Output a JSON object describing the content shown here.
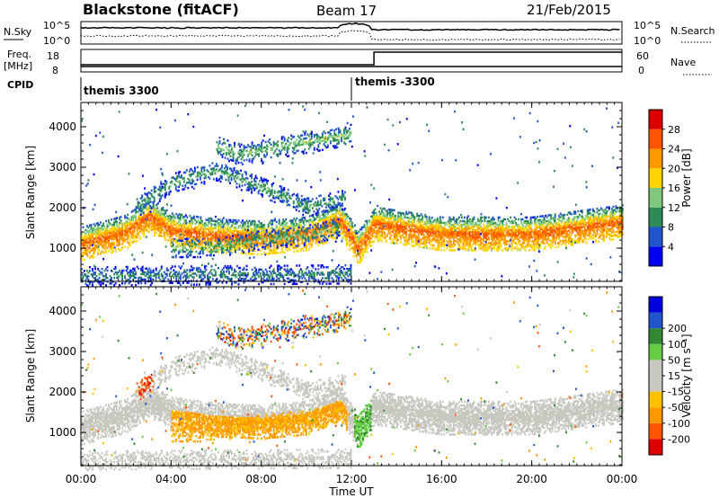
{
  "header": {
    "title": "Blackstone (fitACF)",
    "beam": "Beam 17",
    "date": "21/Feb/2015"
  },
  "noise_panel": {
    "left_label": "N.Sky",
    "left_ticks": [
      "10^5",
      "10^0"
    ],
    "right_ticks": [
      "10^5",
      "10^0"
    ],
    "right_label": "N.Search"
  },
  "freq_panel": {
    "left_label_line1": "Freq.",
    "left_label_line2": "[MHz]",
    "left_ticks": [
      "18",
      "8"
    ],
    "right_ticks": [
      "60",
      "0"
    ],
    "right_label": "Nave"
  },
  "cpid": {
    "label": "CPID",
    "segments": [
      {
        "name": "themis 3300",
        "start_hour": 0
      },
      {
        "name": "themis -3300",
        "start_hour": 12
      }
    ]
  },
  "x_axis": {
    "label": "Time UT",
    "ticks": [
      "00:00",
      "04:00",
      "08:00",
      "12:00",
      "16:00",
      "20:00",
      "00:00"
    ],
    "tick_hours": [
      0,
      4,
      8,
      12,
      16,
      20,
      24
    ]
  },
  "colors": {
    "power_scale": [
      "#0000ee",
      "#2255cc",
      "#2e8b57",
      "#7fc97f",
      "#ffd400",
      "#ff9900",
      "#ff5500",
      "#dd0000"
    ],
    "velocity_scale": [
      "#dd0000",
      "#ff5500",
      "#ff9900",
      "#ffc000",
      "#c8c8c0",
      "#c8c8c0",
      "#66cc44",
      "#338833",
      "#2255cc",
      "#0000dd"
    ]
  },
  "chart_data": [
    {
      "type": "heatmap",
      "title": "Power",
      "xlabel": "Time UT",
      "ylabel": "Slant Range [km]",
      "xlim": [
        0,
        24
      ],
      "ylim": [
        180,
        4600
      ],
      "y_ticks": [
        "1000",
        "2000",
        "3000",
        "4000"
      ],
      "y_tick_values": [
        1000,
        2000,
        3000,
        4000
      ],
      "colorbar": {
        "label": "Power [dB]",
        "ticks": [
          "4",
          "8",
          "12",
          "16",
          "20",
          "24",
          "28"
        ],
        "tick_values": [
          4,
          8,
          12,
          16,
          20,
          24,
          28
        ],
        "range": [
          0,
          32
        ]
      },
      "features": [
        {
          "name": "main band",
          "t": [
            0,
            2,
            3,
            4,
            6,
            8,
            10,
            11.5,
            12.3,
            13,
            16,
            20,
            24
          ],
          "range_km": [
            1100,
            1400,
            1800,
            1450,
            1300,
            1250,
            1350,
            1700,
            1000,
            1600,
            1350,
            1350,
            1650
          ],
          "peak_db": 25
        },
        {
          "name": "upper arc",
          "t": [
            2.5,
            4,
            6,
            8,
            10,
            11.7
          ],
          "range_km": [
            2000,
            2600,
            2900,
            2500,
            2000,
            2200
          ],
          "peak_db": 12
        },
        {
          "name": "mid band",
          "t": [
            4,
            6,
            8,
            10,
            11.5
          ],
          "range_km": [
            1000,
            1000,
            1200,
            1300,
            1500
          ],
          "peak_db": 14
        },
        {
          "name": "far echoes",
          "t": [
            6,
            7,
            12
          ],
          "range_km": [
            3500,
            3300,
            3800
          ],
          "peak_db": 14
        },
        {
          "name": "ground scatter",
          "t": [
            0,
            12
          ],
          "range_km": [
            300,
            350
          ],
          "peak_db": 10
        }
      ]
    },
    {
      "type": "heatmap",
      "title": "Velocity",
      "xlabel": "Time UT",
      "ylabel": "Slant Range [km]",
      "xlim": [
        0,
        24
      ],
      "ylim": [
        180,
        4600
      ],
      "y_ticks": [
        "1000",
        "2000",
        "3000",
        "4000"
      ],
      "y_tick_values": [
        1000,
        2000,
        3000,
        4000
      ],
      "colorbar": {
        "label": "Velocity [m s⁻¹]",
        "ticks": [
          "-200",
          "-100",
          "-50",
          "-15",
          "15",
          "50",
          "100",
          "200"
        ],
        "tick_values": [
          -200,
          -100,
          -50,
          -15,
          15,
          50,
          100,
          200
        ],
        "range": [
          -250,
          250
        ]
      },
      "features": [
        {
          "name": "ground scatter band",
          "t": [
            0,
            3,
            5,
            8,
            12,
            13,
            24
          ],
          "range_km": [
            1350,
            1400,
            2400,
            1700,
            1500,
            1650,
            1650
          ],
          "velocity": 0
        },
        {
          "name": "westward flow",
          "t": [
            4,
            6,
            8,
            10,
            11.8
          ],
          "range_km": [
            900,
            950,
            1000,
            1200,
            1500
          ],
          "velocity": -60
        },
        {
          "name": "early red patch",
          "t": [
            2.5,
            3
          ],
          "range_km": [
            2000,
            2400
          ],
          "velocity": -200
        },
        {
          "name": "post-midday green",
          "t": [
            12.2,
            12.8
          ],
          "range_km": [
            1500,
            1800
          ],
          "velocity": 40
        }
      ]
    }
  ]
}
